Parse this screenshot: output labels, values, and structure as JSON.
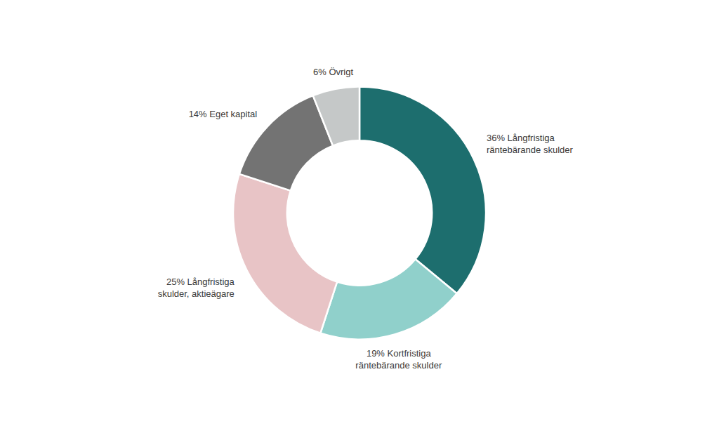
{
  "chart_data": {
    "type": "pie",
    "categories": [
      "36% Långfristiga\nräntebärande skulder",
      "19% Kortfristiga\nräntebärande skulder",
      "25% Långfristiga\nskulder, aktieägare",
      "14% Eget kapital",
      "6% Övrigt"
    ],
    "values": [
      36,
      19,
      25,
      14,
      6
    ],
    "colors": [
      "#1d6e6e",
      "#90d0cb",
      "#e8c4c6",
      "#737373",
      "#c5c8c8"
    ]
  }
}
